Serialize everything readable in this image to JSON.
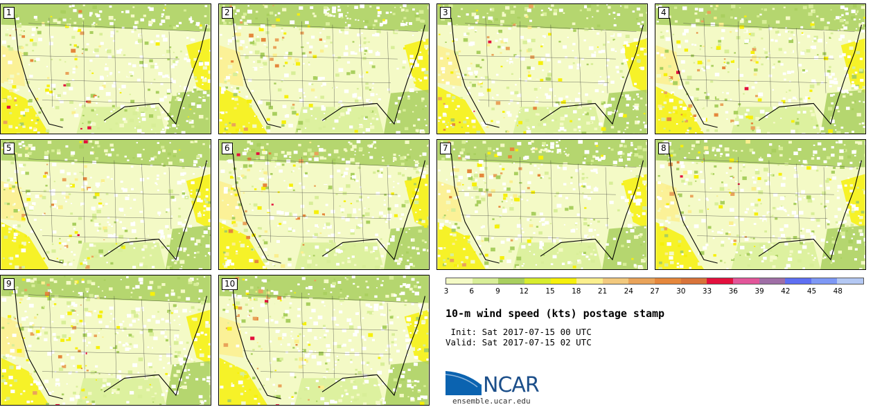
{
  "panels": [
    {
      "label": "1"
    },
    {
      "label": "2"
    },
    {
      "label": "3"
    },
    {
      "label": "4"
    },
    {
      "label": "5"
    },
    {
      "label": "6"
    },
    {
      "label": "7"
    },
    {
      "label": "8"
    },
    {
      "label": "9"
    },
    {
      "label": "10"
    }
  ],
  "colorbar": {
    "ticks": [
      "3",
      "6",
      "9",
      "12",
      "15",
      "18",
      "21",
      "24",
      "27",
      "30",
      "33",
      "36",
      "39",
      "42",
      "45",
      "48"
    ],
    "colors": [
      "#f4fac6",
      "#d8ee98",
      "#a9cf5f",
      "#d7ec2e",
      "#f6f00c",
      "#fbef8e",
      "#f2c97e",
      "#e9a35a",
      "#e5873c",
      "#d8733a",
      "#e3103d",
      "#e2569a",
      "#9f6ea6",
      "#5e6ff2",
      "#7e98f5",
      "#b4c8f3"
    ]
  },
  "title": "10-m wind speed (kts) postage stamp",
  "init": " Init: Sat 2017-07-15 00 UTC",
  "valid": "Valid: Sat 2017-07-15 02 UTC",
  "logo_text": "NCAR",
  "url": "ensemble.ucar.edu"
}
